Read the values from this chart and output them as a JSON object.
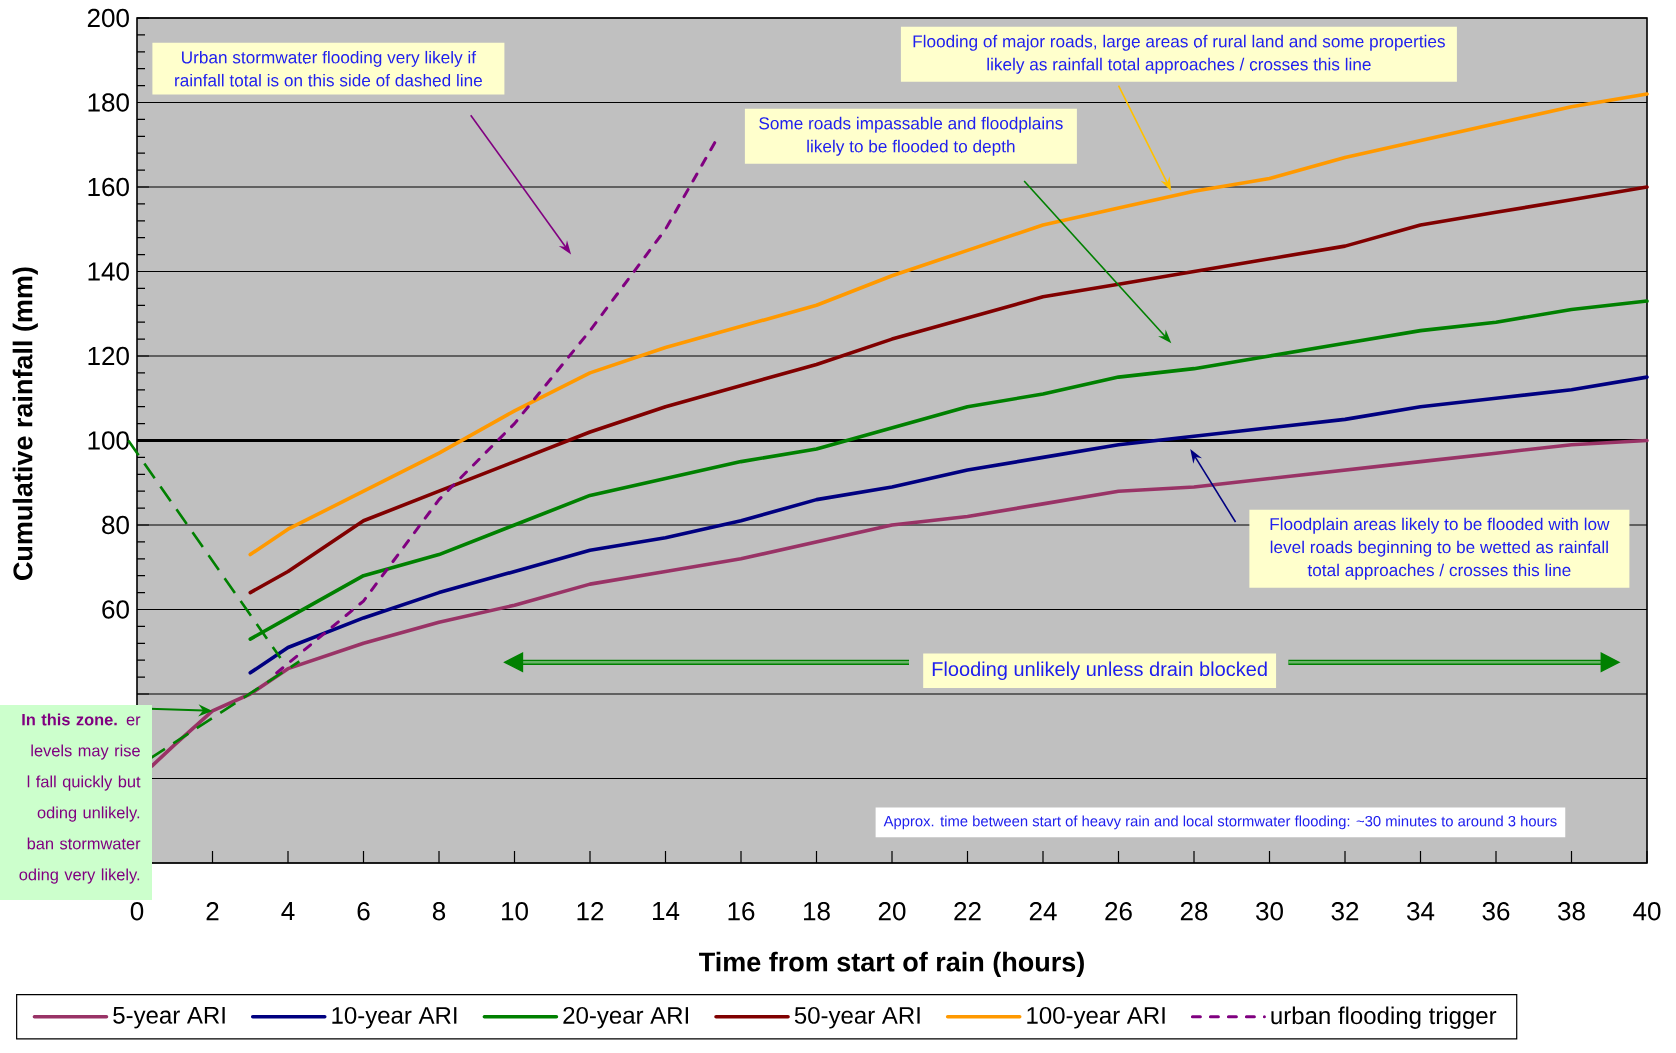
{
  "chart_data": {
    "type": "line",
    "xlabel": "Time from start of rain (hours)",
    "ylabel": "Cumulative rainfall (mm)",
    "xlim": [
      0,
      40
    ],
    "xticks": [
      0,
      2,
      4,
      6,
      8,
      10,
      12,
      14,
      16,
      18,
      20,
      22,
      24,
      26,
      28,
      30,
      32,
      34,
      36,
      38,
      40
    ],
    "ylim": [
      0,
      200
    ],
    "yticks": [
      {
        "value": 0,
        "label": null
      },
      {
        "value": 20,
        "label": null
      },
      {
        "value": 40,
        "label": null
      },
      60,
      80,
      100,
      120,
      140,
      160,
      180,
      200
    ],
    "grid": "y",
    "legend": "bottom",
    "series": [
      {
        "name": "5-year ARI",
        "color": "#993366",
        "x": [
          0.4,
          1,
          2,
          3,
          4,
          6,
          8,
          10,
          12,
          14,
          16,
          18,
          20,
          22,
          24,
          26,
          28,
          30,
          32,
          34,
          36,
          38,
          40
        ],
        "values": [
          23,
          28,
          36,
          40,
          46,
          52,
          57,
          61,
          66,
          69,
          72,
          76,
          80,
          82,
          85,
          88,
          89,
          91,
          93,
          95,
          97,
          99,
          100
        ]
      },
      {
        "name": "10-year ARI",
        "color": "#000080",
        "x": [
          3,
          4,
          6,
          8,
          10,
          12,
          14,
          16,
          18,
          20,
          22,
          24,
          26,
          28,
          30,
          32,
          34,
          36,
          38,
          40
        ],
        "values": [
          45,
          51,
          58,
          64,
          69,
          74,
          77,
          81,
          86,
          89,
          93,
          96,
          99,
          101,
          103,
          105,
          108,
          110,
          112,
          115
        ]
      },
      {
        "name": "20-year ARI",
        "color": "#008000",
        "x": [
          3,
          4,
          6,
          8,
          10,
          12,
          14,
          16,
          18,
          20,
          22,
          24,
          26,
          28,
          30,
          32,
          34,
          36,
          38,
          40
        ],
        "values": [
          53,
          58,
          68,
          73,
          80,
          87,
          91,
          95,
          98,
          103,
          108,
          111,
          115,
          117,
          120,
          123,
          126,
          128,
          131,
          133
        ]
      },
      {
        "name": "50-year ARI",
        "color": "#800000",
        "x": [
          3,
          4,
          6,
          8,
          10,
          12,
          14,
          16,
          18,
          20,
          22,
          24,
          26,
          28,
          30,
          32,
          34,
          36,
          38,
          40
        ],
        "values": [
          64,
          69,
          81,
          88,
          95,
          102,
          108,
          113,
          118,
          124,
          129,
          134,
          137,
          140,
          143,
          146,
          151,
          154,
          157,
          160
        ]
      },
      {
        "name": "100-year ARI",
        "color": "#ff9900",
        "x": [
          3,
          4,
          6,
          8,
          10,
          12,
          14,
          16,
          18,
          20,
          22,
          24,
          26,
          28,
          30,
          32,
          34,
          36,
          38,
          40
        ],
        "values": [
          73,
          79,
          88,
          97,
          107,
          116,
          122,
          127,
          132,
          139,
          145,
          151,
          155,
          159,
          162,
          167,
          171,
          175,
          179,
          182
        ]
      },
      {
        "name": "urban flooding trigger",
        "color": "#800080",
        "line_style": "dashed",
        "x": [
          3.7,
          6,
          8,
          10,
          12,
          14,
          15.4
        ],
        "values": [
          45,
          62,
          86,
          104,
          126,
          150,
          172
        ]
      }
    ],
    "ref_lines": [
      {
        "axis": "y",
        "value": 100,
        "color": "#000000"
      }
    ],
    "annotations": [
      "Urban stormwater flooding very likely if rainfall total is on this side of dashed line",
      "Flooding of major roads, large areas of rural land and some properties likely as rainfall total approaches / crosses this line",
      "Some roads impassable and floodplains likely to be flooded to depth",
      "Floodplain areas likely to be flooded with low level roads beginning to be wetted as rainfall total approaches / crosses this line",
      "Flooding unlikely unless drain blocked",
      "Approx. time between start of heavy rain and local stormwater flooding: ~30 minutes to around 3 hours",
      {
        "text": "**In this zone.** er levels may rise l fall quickly but oding unlikely. ban stormwater oding very likely.",
        "x": 2,
        "y": 36
      }
    ]
  }
}
